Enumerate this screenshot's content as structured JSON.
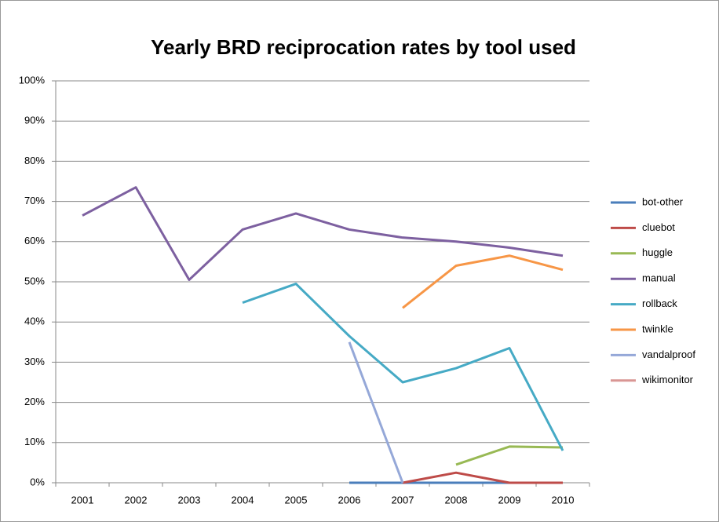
{
  "chart_data": {
    "type": "line",
    "title": "Yearly BRD reciprocation rates by tool used",
    "categories": [
      "2001",
      "2002",
      "2003",
      "2004",
      "2005",
      "2006",
      "2007",
      "2008",
      "2009",
      "2010"
    ],
    "ylim": [
      0,
      100
    ],
    "yticks": [
      {
        "value": 0,
        "label": "0%"
      },
      {
        "value": 10,
        "label": "10%"
      },
      {
        "value": 20,
        "label": "20%"
      },
      {
        "value": 30,
        "label": "30%"
      },
      {
        "value": 40,
        "label": "40%"
      },
      {
        "value": 50,
        "label": "50%"
      },
      {
        "value": 60,
        "label": "60%"
      },
      {
        "value": 70,
        "label": "70%"
      },
      {
        "value": 80,
        "label": "80%"
      },
      {
        "value": 90,
        "label": "90%"
      },
      {
        "value": 100,
        "label": "100%"
      }
    ],
    "grid": true,
    "legend": "right",
    "series": [
      {
        "name": "bot-other",
        "color": "#4a7ebb",
        "values": [
          null,
          null,
          null,
          null,
          null,
          0,
          0,
          0,
          0,
          0
        ]
      },
      {
        "name": "cluebot",
        "color": "#be4b48",
        "values": [
          null,
          null,
          null,
          null,
          null,
          null,
          0,
          2.5,
          0,
          0
        ]
      },
      {
        "name": "huggle",
        "color": "#98b954",
        "values": [
          null,
          null,
          null,
          null,
          null,
          null,
          null,
          4.5,
          9,
          8.8
        ]
      },
      {
        "name": "manual",
        "color": "#7d60a0",
        "values": [
          66.5,
          73.5,
          50.5,
          63,
          67,
          63,
          61,
          60,
          58.5,
          56.5
        ]
      },
      {
        "name": "rollback",
        "color": "#46aac5",
        "values": [
          null,
          null,
          null,
          44.8,
          49.5,
          36.5,
          25,
          28.5,
          33.5,
          8
        ]
      },
      {
        "name": "twinkle",
        "color": "#f79646",
        "values": [
          null,
          null,
          null,
          null,
          null,
          null,
          43.5,
          54,
          56.5,
          53
        ]
      },
      {
        "name": "vandalproof",
        "color": "#95a8d8",
        "values": [
          null,
          null,
          null,
          null,
          null,
          35,
          0,
          null,
          null,
          null
        ]
      },
      {
        "name": "wikimonitor",
        "color": "#d99694",
        "values": [
          null,
          null,
          null,
          null,
          null,
          null,
          null,
          null,
          null,
          null
        ]
      }
    ]
  }
}
